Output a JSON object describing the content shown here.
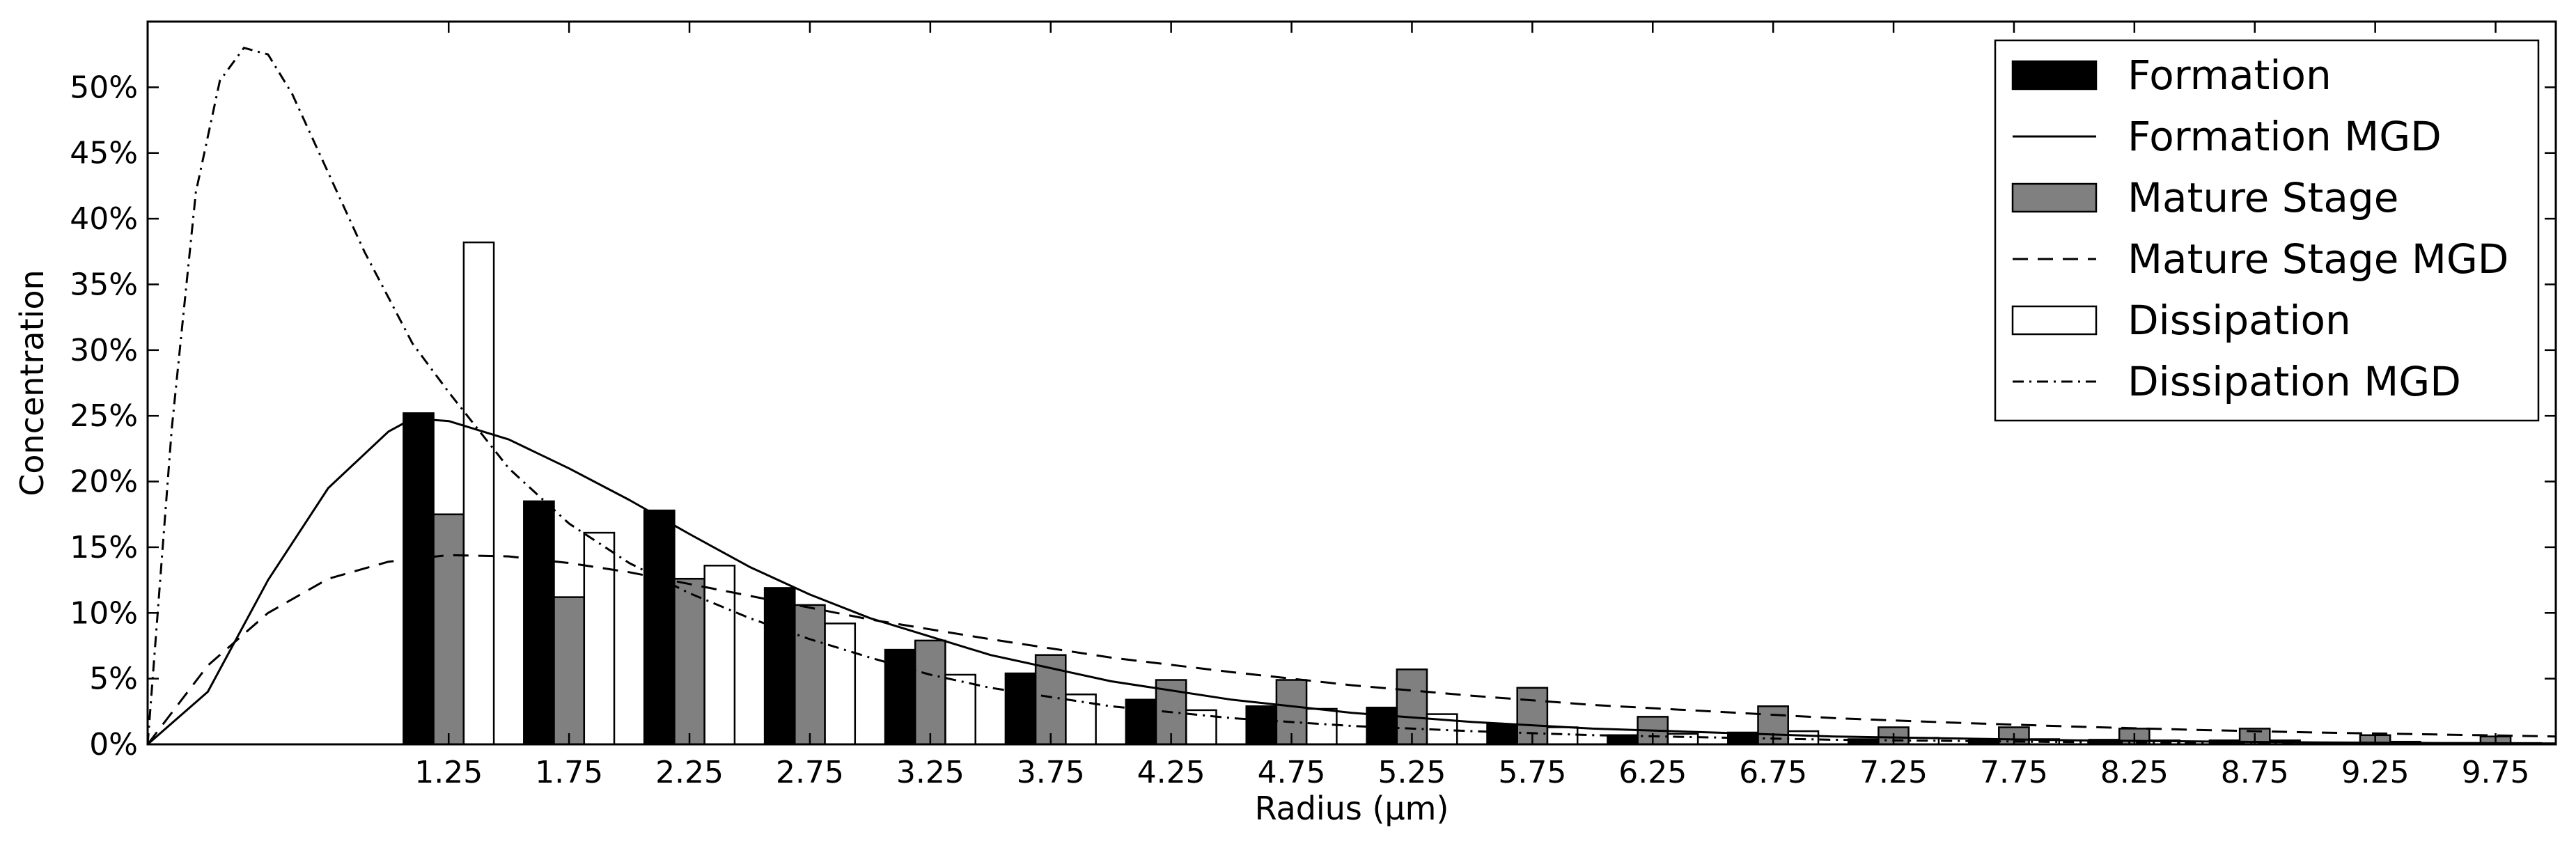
{
  "chart_data": {
    "type": "bar",
    "xlabel": "Radius (μm)",
    "ylabel": "Concentration",
    "xlim": [
      0.0,
      10.0
    ],
    "ylim": [
      0,
      55
    ],
    "y_ticks": [
      0,
      5,
      10,
      15,
      20,
      25,
      30,
      35,
      40,
      45,
      50
    ],
    "y_tick_labels": [
      "0%",
      "5%",
      "10%",
      "15%",
      "20%",
      "25%",
      "30%",
      "35%",
      "40%",
      "45%",
      "50%"
    ],
    "categories": [
      "1.25",
      "1.75",
      "2.25",
      "2.75",
      "3.25",
      "3.75",
      "4.25",
      "4.75",
      "5.25",
      "5.75",
      "6.25",
      "6.75",
      "7.25",
      "7.75",
      "8.25",
      "8.75",
      "9.25",
      "9.75"
    ],
    "legend_position": "top-right",
    "grid": false,
    "series": [
      {
        "name": "Formation",
        "kind": "bar",
        "color": "#000000",
        "values": [
          25.2,
          18.5,
          17.8,
          11.9,
          7.2,
          5.4,
          3.4,
          2.9,
          2.8,
          1.5,
          0.7,
          0.9,
          0.4,
          0.4,
          0.35,
          0.3,
          0.1,
          0.1
        ]
      },
      {
        "name": "Mature Stage",
        "kind": "bar",
        "color": "#808080",
        "values": [
          17.5,
          11.2,
          12.6,
          10.6,
          7.9,
          6.8,
          4.9,
          4.9,
          5.7,
          4.3,
          2.1,
          2.9,
          1.3,
          1.3,
          1.2,
          1.2,
          0.7,
          0.6
        ]
      },
      {
        "name": "Dissipation",
        "kind": "bar",
        "color": "#ffffff",
        "values": [
          38.2,
          16.1,
          13.6,
          9.2,
          5.3,
          3.8,
          2.6,
          2.7,
          2.3,
          1.3,
          0.8,
          1.0,
          0.5,
          0.4,
          0.3,
          0.3,
          0.2,
          0.1
        ]
      },
      {
        "name": "Formation MGD",
        "kind": "line",
        "style": "solid",
        "color": "#000000",
        "x": [
          0.0,
          0.25,
          0.5,
          0.75,
          1.0,
          1.1,
          1.25,
          1.5,
          1.75,
          2.0,
          2.25,
          2.5,
          2.75,
          3.0,
          3.5,
          4.0,
          4.5,
          5.0,
          5.5,
          6.0,
          6.5,
          7.0,
          7.5,
          8.0,
          8.5,
          9.0,
          9.5,
          10.0
        ],
        "y": [
          0,
          4.0,
          12.5,
          19.5,
          23.8,
          24.8,
          24.6,
          23.2,
          21.0,
          18.6,
          16.0,
          13.5,
          11.4,
          9.6,
          6.8,
          4.8,
          3.4,
          2.4,
          1.7,
          1.2,
          0.9,
          0.6,
          0.45,
          0.3,
          0.22,
          0.15,
          0.1,
          0.07
        ]
      },
      {
        "name": "Mature Stage MGD",
        "kind": "line",
        "style": "dashed",
        "color": "#000000",
        "x": [
          0.0,
          0.25,
          0.5,
          0.75,
          1.0,
          1.25,
          1.5,
          1.75,
          2.0,
          2.5,
          3.0,
          3.5,
          4.0,
          4.5,
          5.0,
          5.5,
          6.0,
          6.5,
          7.0,
          7.5,
          8.0,
          8.5,
          9.0,
          9.5,
          10.0
        ],
        "y": [
          0,
          6.0,
          10.0,
          12.6,
          13.9,
          14.4,
          14.3,
          13.8,
          13.1,
          11.3,
          9.5,
          8.0,
          6.6,
          5.5,
          4.5,
          3.7,
          3.0,
          2.5,
          2.0,
          1.65,
          1.35,
          1.1,
          0.9,
          0.75,
          0.6
        ]
      },
      {
        "name": "Dissipation MGD",
        "kind": "line",
        "style": "dashdot",
        "color": "#000000",
        "x": [
          0.0,
          0.1,
          0.2,
          0.3,
          0.4,
          0.5,
          0.6,
          0.75,
          0.9,
          1.0,
          1.1,
          1.25,
          1.5,
          1.75,
          2.0,
          2.25,
          2.5,
          2.75,
          3.0,
          3.25,
          3.5,
          4.0,
          4.5,
          5.0,
          5.5,
          6.0,
          7.0,
          8.0,
          9.0,
          10.0
        ],
        "y": [
          0,
          24,
          42,
          50.5,
          53.0,
          52.5,
          49.5,
          43.5,
          37.5,
          34.0,
          30.5,
          26.8,
          21.0,
          16.8,
          13.8,
          11.5,
          9.6,
          8.0,
          6.6,
          5.3,
          4.3,
          2.9,
          2.0,
          1.4,
          1.0,
          0.7,
          0.35,
          0.17,
          0.08,
          0.04
        ]
      }
    ]
  }
}
